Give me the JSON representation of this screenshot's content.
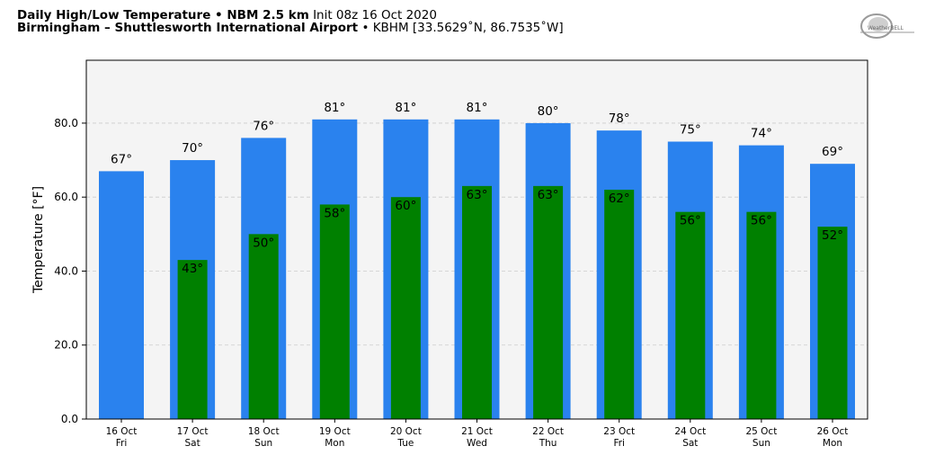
{
  "header": {
    "title_bold": "Daily High/Low Temperature • NBM 2.5 km",
    "init_text": "Init 08z 16 Oct 2020",
    "location_bold": "Birmingham – Shuttlesworth International Airport",
    "location_detail": "• KBHM [33.5629˚N, 86.7535˚W]"
  },
  "logo": {
    "text": "WeatherBELL",
    "icon": "weatherbell-logo"
  },
  "colors": {
    "high": "#2a82ee",
    "low": "#008000",
    "plot_bg": "#f4f4f4",
    "grid": "#cccccc"
  },
  "chart_data": {
    "type": "bar",
    "title": "",
    "xlabel": "",
    "ylabel": "Temperature [°F]",
    "ylim": [
      0,
      97
    ],
    "yticks": [
      "0.0",
      "20.0",
      "40.0",
      "60.0",
      "80.0"
    ],
    "grid": true,
    "categories": [
      {
        "date": "16 Oct",
        "day": "Fri"
      },
      {
        "date": "17 Oct",
        "day": "Sat"
      },
      {
        "date": "18 Oct",
        "day": "Sun"
      },
      {
        "date": "19 Oct",
        "day": "Mon"
      },
      {
        "date": "20 Oct",
        "day": "Tue"
      },
      {
        "date": "21 Oct",
        "day": "Wed"
      },
      {
        "date": "22 Oct",
        "day": "Thu"
      },
      {
        "date": "23 Oct",
        "day": "Fri"
      },
      {
        "date": "24 Oct",
        "day": "Sat"
      },
      {
        "date": "25 Oct",
        "day": "Sun"
      },
      {
        "date": "26 Oct",
        "day": "Mon"
      }
    ],
    "series": [
      {
        "values": [
          67,
          70,
          76,
          81,
          81,
          81,
          80,
          78,
          75,
          74,
          69
        ],
        "labels": [
          "67°",
          "70°",
          "76°",
          "81°",
          "81°",
          "81°",
          "80°",
          "78°",
          "75°",
          "74°",
          "69°"
        ]
      },
      {
        "values": [
          null,
          43,
          50,
          58,
          60,
          63,
          63,
          62,
          56,
          56,
          52
        ],
        "labels": [
          "",
          "43°",
          "50°",
          "58°",
          "60°",
          "63°",
          "63°",
          "62°",
          "56°",
          "56°",
          "52°"
        ]
      }
    ]
  }
}
